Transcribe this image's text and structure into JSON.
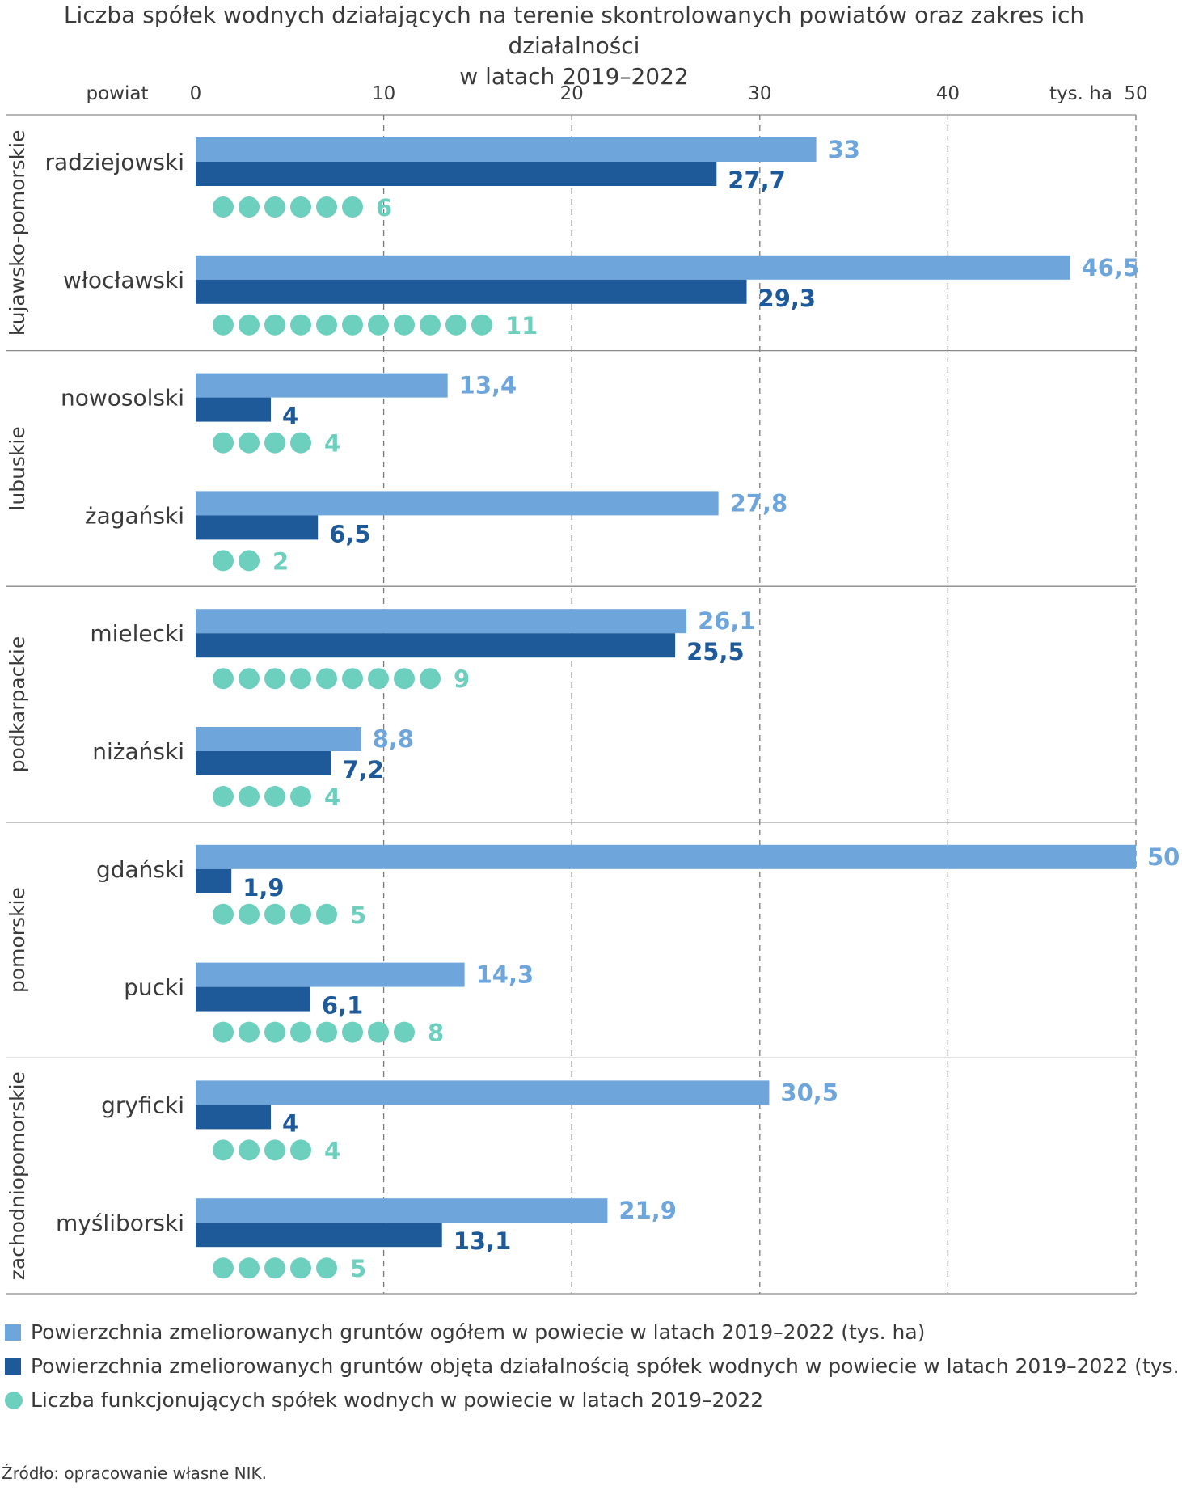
{
  "title_line1": "Liczba spółek wodnych działających na terenie skontrolowanych powiatów oraz zakres ich działalności",
  "title_line2": "w latach 2019–2022",
  "colors": {
    "total": "#6ea6dc",
    "covered": "#1e5a9a",
    "dots": "#6dcfbd",
    "grid": "#7a7a7a",
    "text": "#3a3a3a"
  },
  "chart_data": {
    "type": "bar",
    "orientation": "horizontal",
    "row_header": "powiat",
    "unit_label": "tys. ha",
    "xlim": [
      0,
      50
    ],
    "ticks": [
      0,
      10,
      20,
      30,
      40,
      50
    ],
    "grid": "dashed vertical",
    "series": [
      {
        "name": "Powierzchnia zmeliorowanych gruntów ogółem w powiecie w latach 2019–2022 (tys. ha)"
      },
      {
        "name": "Powierzchnia zmeliorowanych gruntów objęta działalnością spółek wodnych w powiecie w latach 2019–2022 (tys. ha)"
      },
      {
        "name": "Liczba funkcjonujących spółek wodnych w powiecie w latach 2019–2022"
      }
    ],
    "groups": [
      {
        "name": "kujawsko-pomorskie",
        "rows": [
          {
            "label": "radziejowski",
            "total": 33,
            "total_text": "33",
            "covered": 27.7,
            "covered_text": "27,7",
            "count": 6
          },
          {
            "label": "włocławski",
            "total": 46.5,
            "total_text": "46,5",
            "covered": 29.3,
            "covered_text": "29,3",
            "count": 11
          }
        ]
      },
      {
        "name": "lubuskie",
        "rows": [
          {
            "label": "nowosolski",
            "total": 13.4,
            "total_text": "13,4",
            "covered": 4,
            "covered_text": "4",
            "count": 4
          },
          {
            "label": "żagański",
            "total": 27.8,
            "total_text": "27,8",
            "covered": 6.5,
            "covered_text": "6,5",
            "count": 2
          }
        ]
      },
      {
        "name": "podkarpackie",
        "rows": [
          {
            "label": "mielecki",
            "total": 26.1,
            "total_text": "26,1",
            "covered": 25.5,
            "covered_text": "25,5",
            "count": 9
          },
          {
            "label": "niżański",
            "total": 8.8,
            "total_text": "8,8",
            "covered": 7.2,
            "covered_text": "7,2",
            "count": 4
          }
        ]
      },
      {
        "name": "pomorskie",
        "rows": [
          {
            "label": "gdański",
            "total": 50,
            "total_text": "50",
            "covered": 1.9,
            "covered_text": "1,9",
            "count": 5
          },
          {
            "label": "pucki",
            "total": 14.3,
            "total_text": "14,3",
            "covered": 6.1,
            "covered_text": "6,1",
            "count": 8
          }
        ]
      },
      {
        "name": "zachodniopomorskie",
        "rows": [
          {
            "label": "gryficki",
            "total": 30.5,
            "total_text": "30,5",
            "covered": 4,
            "covered_text": "4",
            "count": 4
          },
          {
            "label": "myśliborski",
            "total": 21.9,
            "total_text": "21,9",
            "covered": 13.1,
            "covered_text": "13,1",
            "count": 5
          }
        ]
      }
    ]
  },
  "source": "Źródło: opracowanie własne NIK."
}
